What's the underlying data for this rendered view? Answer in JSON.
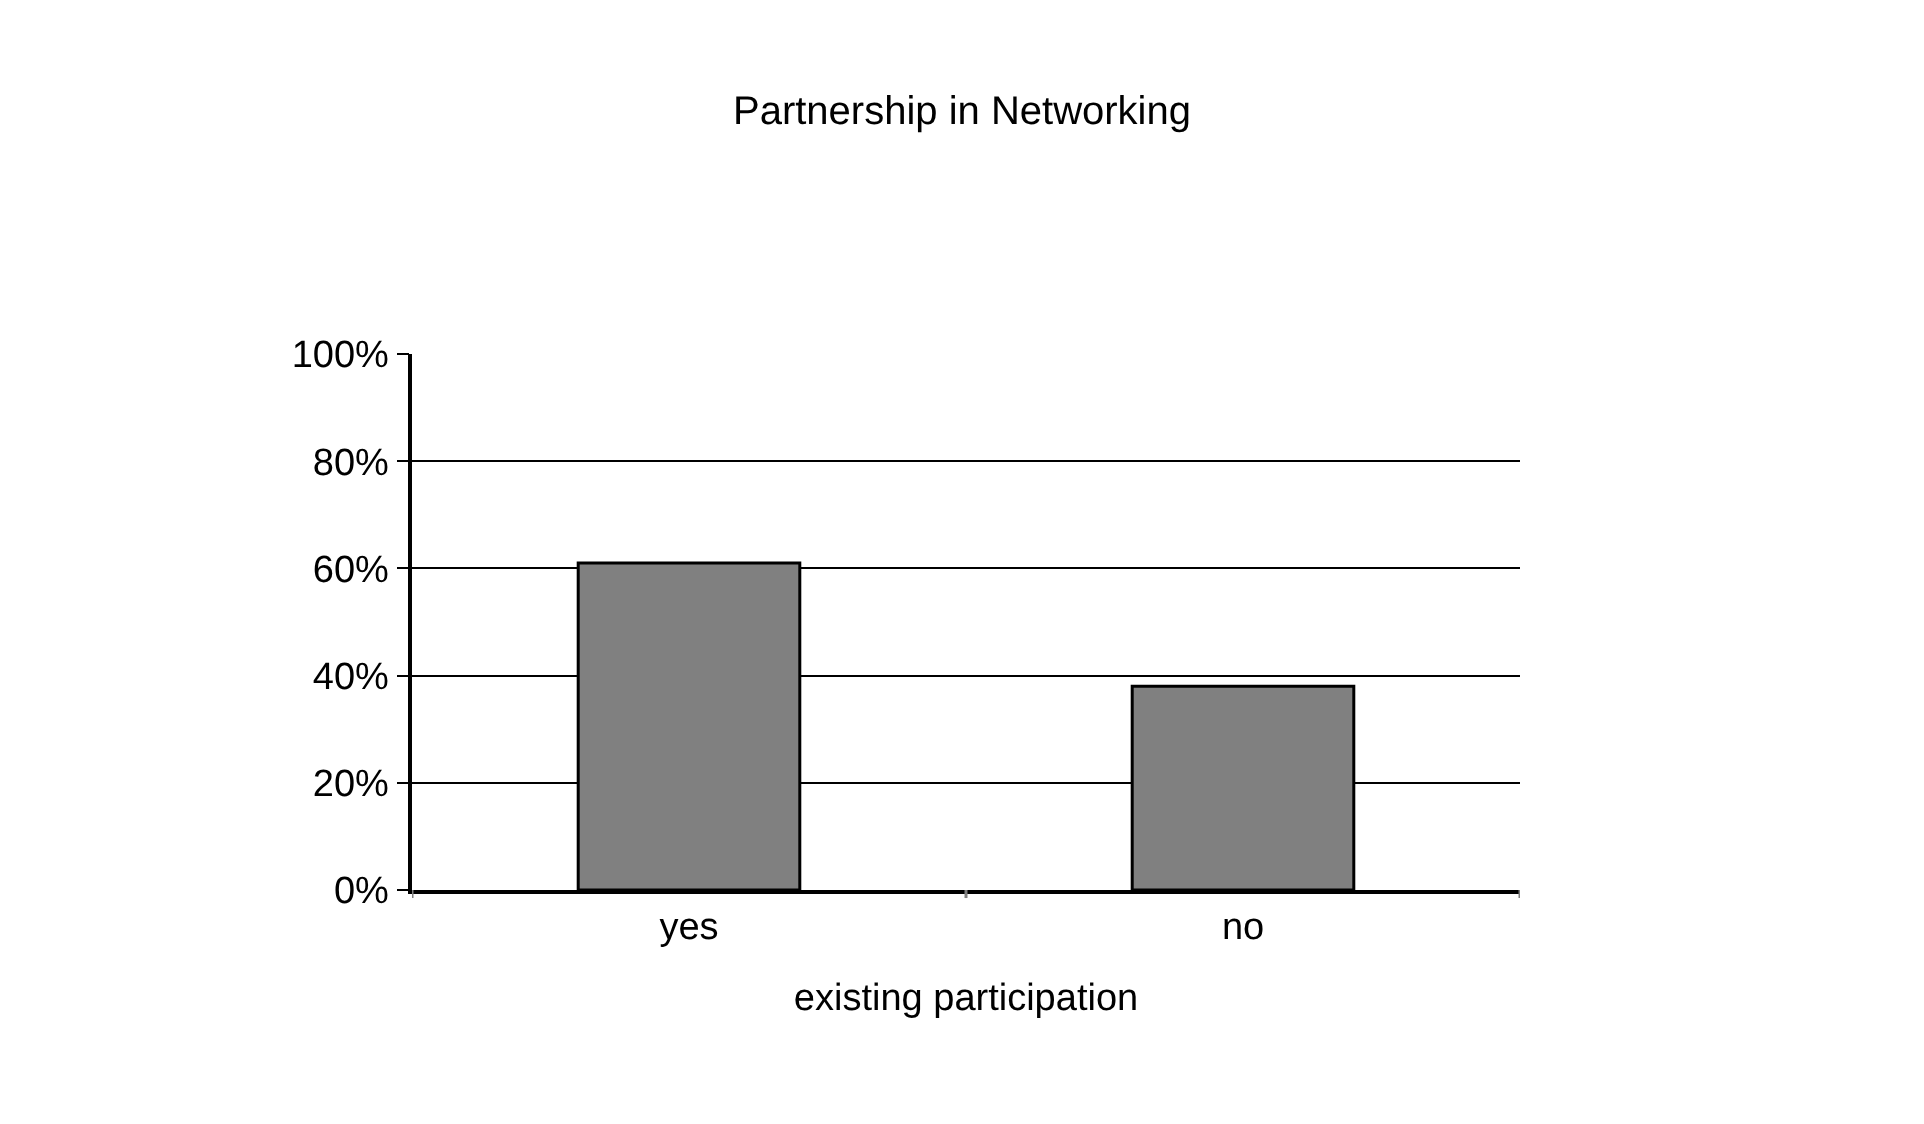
{
  "chart_data": {
    "type": "bar",
    "title": "Partnership in Networking",
    "xlabel": "existing participation",
    "categories": [
      "yes",
      "no"
    ],
    "series": [
      {
        "color": "#808080",
        "values": [
          61,
          38
        ]
      }
    ],
    "ylim": [
      0,
      100
    ],
    "yticks": [
      {
        "value": 0,
        "label": "0%"
      },
      {
        "value": 20,
        "label": "20%"
      },
      {
        "value": 40,
        "label": "40%"
      },
      {
        "value": 60,
        "label": "60%"
      },
      {
        "value": 80,
        "label": "80%"
      },
      {
        "value": 100,
        "label": "100%"
      }
    ],
    "grid": "y"
  }
}
